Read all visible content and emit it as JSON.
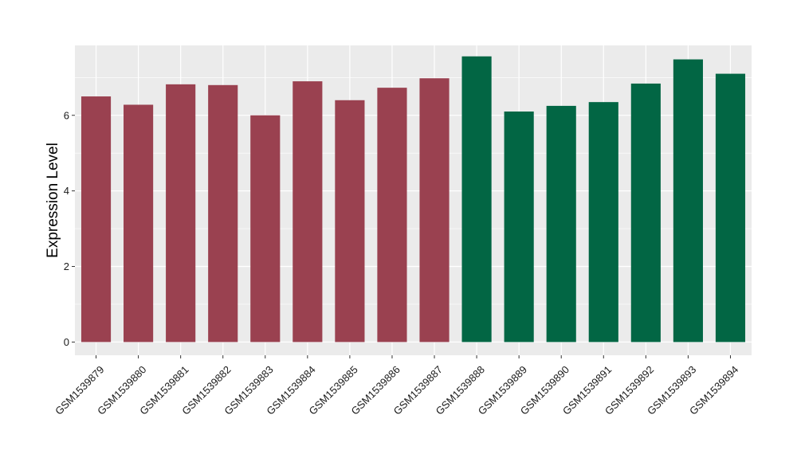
{
  "colors": {
    "group1": "#9a4150",
    "group2": "#026644",
    "panel_bg": "#ebebeb",
    "grid": "#ffffff"
  },
  "chart_data": {
    "type": "bar",
    "title": "",
    "xlabel": "",
    "ylabel": "Expression Level",
    "ylim": [
      -0.35,
      7.85
    ],
    "yticks": [
      0,
      2,
      4,
      6
    ],
    "grid": true,
    "legend": "none",
    "categories": [
      "GSM1539879",
      "GSM1539880",
      "GSM1539881",
      "GSM1539882",
      "GSM1539883",
      "GSM1539884",
      "GSM1539885",
      "GSM1539886",
      "GSM1539887",
      "GSM1539888",
      "GSM1539889",
      "GSM1539890",
      "GSM1539891",
      "GSM1539892",
      "GSM1539893",
      "GSM1539894"
    ],
    "values": [
      6.5,
      6.28,
      6.82,
      6.8,
      6.0,
      6.9,
      6.4,
      6.73,
      6.98,
      7.56,
      6.1,
      6.25,
      6.35,
      6.84,
      7.48,
      7.1
    ],
    "group": [
      1,
      1,
      1,
      1,
      1,
      1,
      1,
      1,
      1,
      2,
      2,
      2,
      2,
      2,
      2,
      2
    ]
  }
}
